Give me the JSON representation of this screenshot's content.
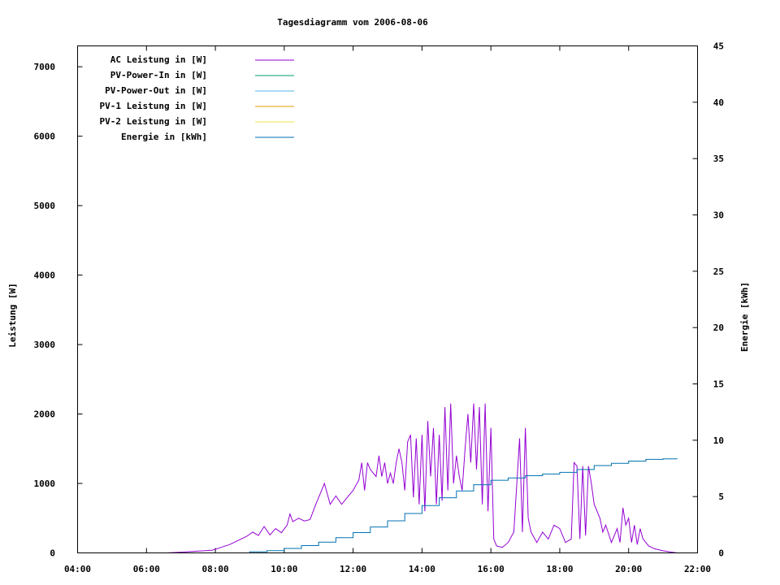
{
  "chart_data": {
    "type": "line",
    "title": "Tagesdiagramm vom 2006-08-06",
    "xlabel": "",
    "ylabel": "Leistung [W]",
    "y2label": "Energie [kWh]",
    "xlim": [
      "04:00",
      "22:00"
    ],
    "ylim": [
      0,
      7300
    ],
    "y2lim": [
      0,
      45
    ],
    "x_ticks": [
      "04:00",
      "06:00",
      "08:00",
      "10:00",
      "12:00",
      "14:00",
      "16:00",
      "18:00",
      "20:00",
      "22:00"
    ],
    "y_ticks": [
      0,
      1000,
      2000,
      3000,
      4000,
      5000,
      6000,
      7000
    ],
    "y2_ticks": [
      0,
      5,
      10,
      15,
      20,
      25,
      30,
      35,
      40,
      45
    ],
    "legend_position": "top-left",
    "series": [
      {
        "name": "AC Leistung in [W]",
        "color": "#9400d3",
        "axis": "left",
        "points": [
          [
            "06:35",
            0
          ],
          [
            "07:00",
            10
          ],
          [
            "07:20",
            20
          ],
          [
            "07:40",
            30
          ],
          [
            "07:55",
            40
          ],
          [
            "08:10",
            80
          ],
          [
            "08:25",
            120
          ],
          [
            "08:40",
            180
          ],
          [
            "08:55",
            240
          ],
          [
            "09:05",
            300
          ],
          [
            "09:15",
            250
          ],
          [
            "09:25",
            380
          ],
          [
            "09:35",
            260
          ],
          [
            "09:45",
            350
          ],
          [
            "09:55",
            290
          ],
          [
            "10:05",
            400
          ],
          [
            "10:10",
            560
          ],
          [
            "10:15",
            450
          ],
          [
            "10:25",
            500
          ],
          [
            "10:35",
            460
          ],
          [
            "10:45",
            480
          ],
          [
            "10:55",
            700
          ],
          [
            "11:05",
            900
          ],
          [
            "11:10",
            1000
          ],
          [
            "11:20",
            700
          ],
          [
            "11:30",
            820
          ],
          [
            "11:40",
            700
          ],
          [
            "11:50",
            800
          ],
          [
            "12:00",
            900
          ],
          [
            "12:10",
            1050
          ],
          [
            "12:15",
            1300
          ],
          [
            "12:20",
            900
          ],
          [
            "12:25",
            1300
          ],
          [
            "12:30",
            1200
          ],
          [
            "12:40",
            1100
          ],
          [
            "12:45",
            1400
          ],
          [
            "12:50",
            1100
          ],
          [
            "12:55",
            1300
          ],
          [
            "13:00",
            1000
          ],
          [
            "13:05",
            1150
          ],
          [
            "13:10",
            1000
          ],
          [
            "13:15",
            1300
          ],
          [
            "13:20",
            1500
          ],
          [
            "13:25",
            1300
          ],
          [
            "13:30",
            900
          ],
          [
            "13:35",
            1600
          ],
          [
            "13:40",
            1700
          ],
          [
            "13:45",
            800
          ],
          [
            "13:50",
            1650
          ],
          [
            "13:55",
            700
          ],
          [
            "14:00",
            1700
          ],
          [
            "14:05",
            600
          ],
          [
            "14:10",
            1900
          ],
          [
            "14:15",
            1100
          ],
          [
            "14:20",
            1800
          ],
          [
            "14:25",
            700
          ],
          [
            "14:30",
            1700
          ],
          [
            "14:35",
            750
          ],
          [
            "14:40",
            2100
          ],
          [
            "14:45",
            900
          ],
          [
            "14:50",
            2150
          ],
          [
            "14:55",
            1000
          ],
          [
            "15:00",
            1400
          ],
          [
            "15:05",
            1100
          ],
          [
            "15:10",
            900
          ],
          [
            "15:15",
            1500
          ],
          [
            "15:20",
            2000
          ],
          [
            "15:25",
            1300
          ],
          [
            "15:30",
            2150
          ],
          [
            "15:35",
            1200
          ],
          [
            "15:40",
            2100
          ],
          [
            "15:45",
            700
          ],
          [
            "15:50",
            2150
          ],
          [
            "15:55",
            600
          ],
          [
            "16:00",
            1800
          ],
          [
            "16:05",
            200
          ],
          [
            "16:10",
            100
          ],
          [
            "16:20",
            80
          ],
          [
            "16:30",
            150
          ],
          [
            "16:40",
            300
          ],
          [
            "16:50",
            1650
          ],
          [
            "16:55",
            300
          ],
          [
            "17:00",
            1800
          ],
          [
            "17:05",
            500
          ],
          [
            "17:10",
            300
          ],
          [
            "17:20",
            150
          ],
          [
            "17:30",
            300
          ],
          [
            "17:40",
            200
          ],
          [
            "17:50",
            400
          ],
          [
            "18:00",
            350
          ],
          [
            "18:10",
            150
          ],
          [
            "18:20",
            200
          ],
          [
            "18:25",
            1300
          ],
          [
            "18:30",
            1250
          ],
          [
            "18:35",
            200
          ],
          [
            "18:40",
            1250
          ],
          [
            "18:45",
            250
          ],
          [
            "18:50",
            1250
          ],
          [
            "18:55",
            1000
          ],
          [
            "19:00",
            700
          ],
          [
            "19:10",
            500
          ],
          [
            "19:15",
            300
          ],
          [
            "19:20",
            400
          ],
          [
            "19:30",
            150
          ],
          [
            "19:40",
            350
          ],
          [
            "19:45",
            150
          ],
          [
            "19:50",
            650
          ],
          [
            "19:55",
            400
          ],
          [
            "20:00",
            500
          ],
          [
            "20:05",
            150
          ],
          [
            "20:10",
            400
          ],
          [
            "20:15",
            120
          ],
          [
            "20:20",
            350
          ],
          [
            "20:25",
            200
          ],
          [
            "20:35",
            100
          ],
          [
            "20:45",
            60
          ],
          [
            "21:00",
            30
          ],
          [
            "21:15",
            10
          ],
          [
            "21:25",
            0
          ]
        ]
      },
      {
        "name": "PV-Power-In in [W]",
        "color": "#009e73",
        "axis": "left",
        "points": []
      },
      {
        "name": "PV-Power-Out in [W]",
        "color": "#56b4e9",
        "axis": "left",
        "points": []
      },
      {
        "name": "PV-1 Leistung in [W]",
        "color": "#e69f00",
        "axis": "left",
        "points": []
      },
      {
        "name": "PV-2 Leistung in [W]",
        "color": "#f0e442",
        "axis": "left",
        "points": []
      },
      {
        "name": "Energie in [kWh]",
        "color": "#0072b2",
        "axis": "right",
        "points": [
          [
            "08:40",
            0.0
          ],
          [
            "09:00",
            0.1
          ],
          [
            "09:30",
            0.2
          ],
          [
            "10:00",
            0.4
          ],
          [
            "10:30",
            0.65
          ],
          [
            "11:00",
            0.95
          ],
          [
            "11:30",
            1.35
          ],
          [
            "12:00",
            1.8
          ],
          [
            "12:30",
            2.3
          ],
          [
            "13:00",
            2.85
          ],
          [
            "13:30",
            3.5
          ],
          [
            "14:00",
            4.2
          ],
          [
            "14:30",
            4.9
          ],
          [
            "15:00",
            5.5
          ],
          [
            "15:30",
            6.05
          ],
          [
            "16:00",
            6.45
          ],
          [
            "16:30",
            6.65
          ],
          [
            "17:00",
            6.85
          ],
          [
            "17:30",
            7.0
          ],
          [
            "18:00",
            7.15
          ],
          [
            "18:30",
            7.4
          ],
          [
            "19:00",
            7.75
          ],
          [
            "19:30",
            7.95
          ],
          [
            "20:00",
            8.15
          ],
          [
            "20:30",
            8.3
          ],
          [
            "21:00",
            8.35
          ],
          [
            "21:25",
            8.35
          ]
        ]
      }
    ]
  }
}
